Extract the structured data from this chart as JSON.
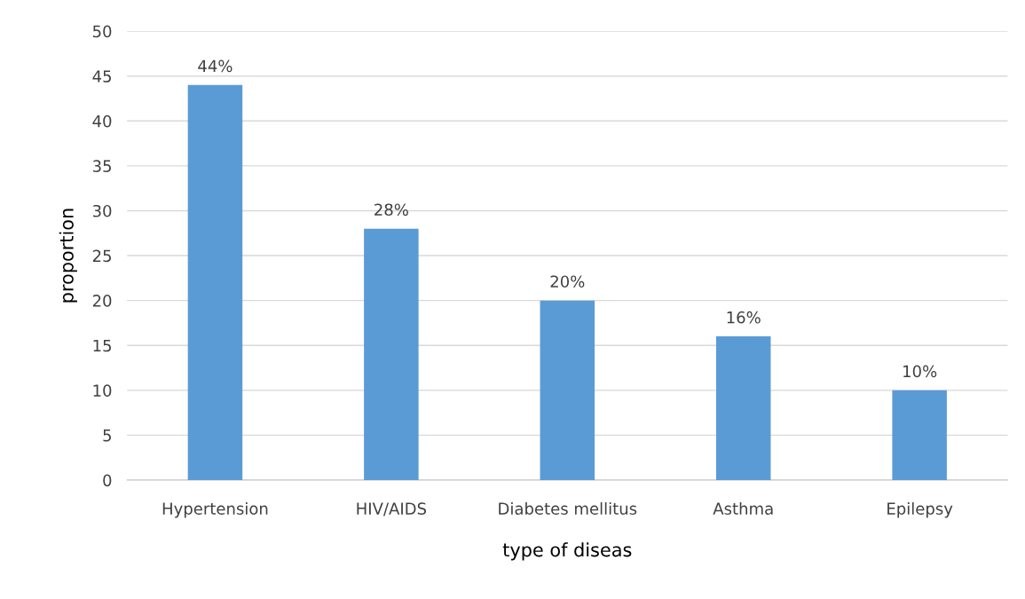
{
  "chart_data": {
    "type": "bar",
    "xlabel": "type of diseas",
    "ylabel": "proportion",
    "categories": [
      "Hypertension",
      "HIV/AIDS",
      "Diabetes mellitus",
      "Asthma",
      "Epilepsy"
    ],
    "values": [
      44,
      28,
      20,
      16,
      10
    ],
    "value_labels": [
      "44%",
      "28%",
      "20%",
      "16%",
      "10%"
    ],
    "color": "#5b9bd5",
    "ylim": [
      0,
      50
    ],
    "yticks": [
      0,
      5,
      10,
      15,
      20,
      25,
      30,
      35,
      40,
      45,
      50
    ],
    "grid": "y",
    "legend": false
  }
}
